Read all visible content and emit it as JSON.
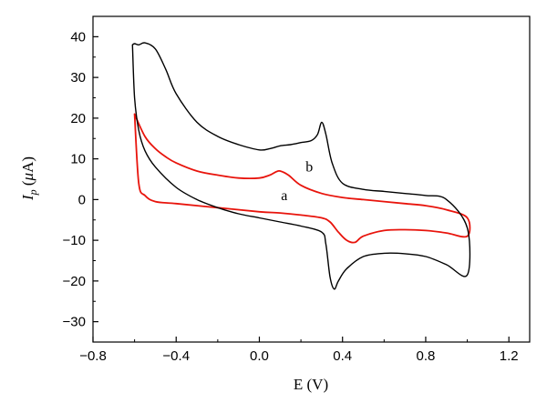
{
  "chart_data": {
    "type": "line",
    "title": "",
    "xlabel": "E (V)",
    "ylabel": "I_p (μA)",
    "xlim": [
      -0.8,
      1.3
    ],
    "ylim": [
      -35,
      45
    ],
    "xticks": [
      -0.8,
      -0.4,
      0.0,
      0.4,
      0.8,
      1.2
    ],
    "xtick_labels": [
      "−0.8",
      "−0.4",
      "0.0",
      "0.4",
      "0.8",
      "1.2"
    ],
    "yticks": [
      -30,
      -20,
      -10,
      0,
      10,
      20,
      30,
      40
    ],
    "ytick_labels": [
      "−30",
      "−20",
      "−10",
      "0",
      "10",
      "20",
      "30",
      "40"
    ],
    "grid": false,
    "annotations": [
      {
        "text": "a",
        "x": 0.12,
        "y": 1
      },
      {
        "text": "b",
        "x": 0.24,
        "y": 8
      }
    ],
    "series": [
      {
        "label": "a",
        "color": "#e8140c",
        "x": [
          -0.6,
          -0.55,
          -0.5,
          -0.45,
          -0.4,
          -0.3,
          -0.2,
          -0.1,
          0.0,
          0.05,
          0.08,
          0.1,
          0.14,
          0.2,
          0.3,
          0.4,
          0.5,
          0.6,
          0.7,
          0.8,
          0.9,
          1.0,
          1.0,
          0.9,
          0.8,
          0.7,
          0.6,
          0.5,
          0.46,
          0.42,
          0.38,
          0.34,
          0.3,
          0.2,
          0.1,
          0.0,
          -0.2,
          -0.4,
          -0.5,
          -0.55,
          -0.58,
          -0.6
        ],
        "y": [
          21,
          15.5,
          12.5,
          10.5,
          9,
          7,
          6,
          5.3,
          5.3,
          6,
          6.8,
          7,
          6,
          3.5,
          1.5,
          0.5,
          0,
          -0.5,
          -1,
          -1.5,
          -2.5,
          -4.5,
          -9,
          -8.2,
          -7.6,
          -7.4,
          -7.6,
          -9,
          -10.5,
          -10,
          -8,
          -5.5,
          -4.5,
          -3.8,
          -3.3,
          -3,
          -2,
          -1,
          -0.5,
          1,
          4,
          21
        ]
      },
      {
        "label": "b",
        "color": "#000000",
        "x": [
          -0.61,
          -0.6,
          -0.58,
          -0.55,
          -0.5,
          -0.45,
          -0.4,
          -0.3,
          -0.2,
          -0.1,
          0.0,
          0.05,
          0.1,
          0.15,
          0.2,
          0.25,
          0.28,
          0.3,
          0.32,
          0.35,
          0.4,
          0.5,
          0.6,
          0.7,
          0.8,
          0.9,
          1.0,
          1.0,
          0.9,
          0.8,
          0.7,
          0.6,
          0.5,
          0.42,
          0.38,
          0.36,
          0.34,
          0.32,
          0.3,
          0.2,
          0.1,
          0.0,
          -0.1,
          -0.2,
          -0.3,
          -0.4,
          -0.5,
          -0.55,
          -0.58,
          -0.6,
          -0.61
        ],
        "y": [
          38,
          38.3,
          38,
          38.5,
          37,
          32,
          26,
          19,
          15.5,
          13.5,
          12.2,
          12.5,
          13.2,
          13.5,
          14,
          14.5,
          16,
          19,
          16,
          9,
          4,
          2.5,
          2,
          1.5,
          1,
          0,
          -7,
          -18.5,
          -16,
          -14,
          -13.3,
          -13.2,
          -14,
          -17,
          -20,
          -22,
          -19,
          -11,
          -8,
          -6.5,
          -5.5,
          -4.5,
          -3.5,
          -2,
          0,
          3,
          8,
          12,
          17,
          25,
          38
        ]
      }
    ]
  }
}
